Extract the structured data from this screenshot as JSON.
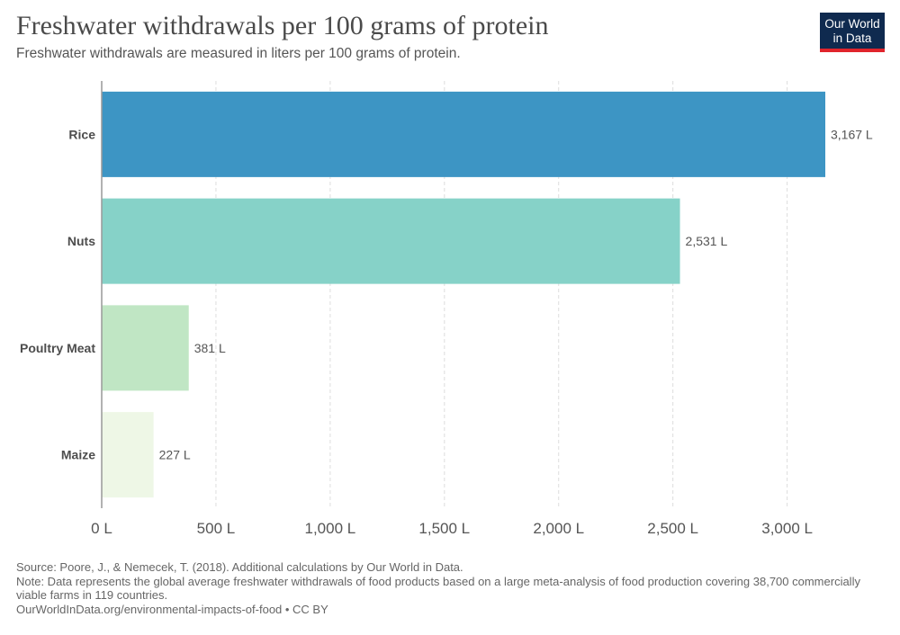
{
  "header": {
    "title": "Freshwater withdrawals per 100 grams of protein",
    "subtitle": "Freshwater withdrawals are measured in liters per 100 grams of protein.",
    "logo_line1": "Our World",
    "logo_line2": "in Data"
  },
  "chart_data": {
    "type": "bar",
    "orientation": "horizontal",
    "categories": [
      "Rice",
      "Nuts",
      "Poultry Meat",
      "Maize"
    ],
    "values": [
      3167,
      2531,
      381,
      227
    ],
    "value_labels": [
      "3,167 L",
      "2,531 L",
      "381 L",
      "227 L"
    ],
    "colors": [
      "#3d95c4",
      "#86d2c8",
      "#c0e6c4",
      "#eef7e6"
    ],
    "xlim": [
      0,
      3167
    ],
    "x_ticks": [
      0,
      500,
      1000,
      1500,
      2000,
      2500,
      3000
    ],
    "x_tick_labels": [
      "0 L",
      "500 L",
      "1,000 L",
      "1,500 L",
      "2,000 L",
      "2,500 L",
      "3,000 L"
    ],
    "grid": true
  },
  "footer": {
    "source": "Source: Poore, J., & Nemecek, T. (2018). Additional calculations by Our World in Data.",
    "note": "Note: Data represents the global average freshwater withdrawals of food products based on a large meta-analysis of food production covering 38,700 commercially viable farms in 119 countries.",
    "link": "OurWorldInData.org/environmental-impacts-of-food • CC BY"
  }
}
